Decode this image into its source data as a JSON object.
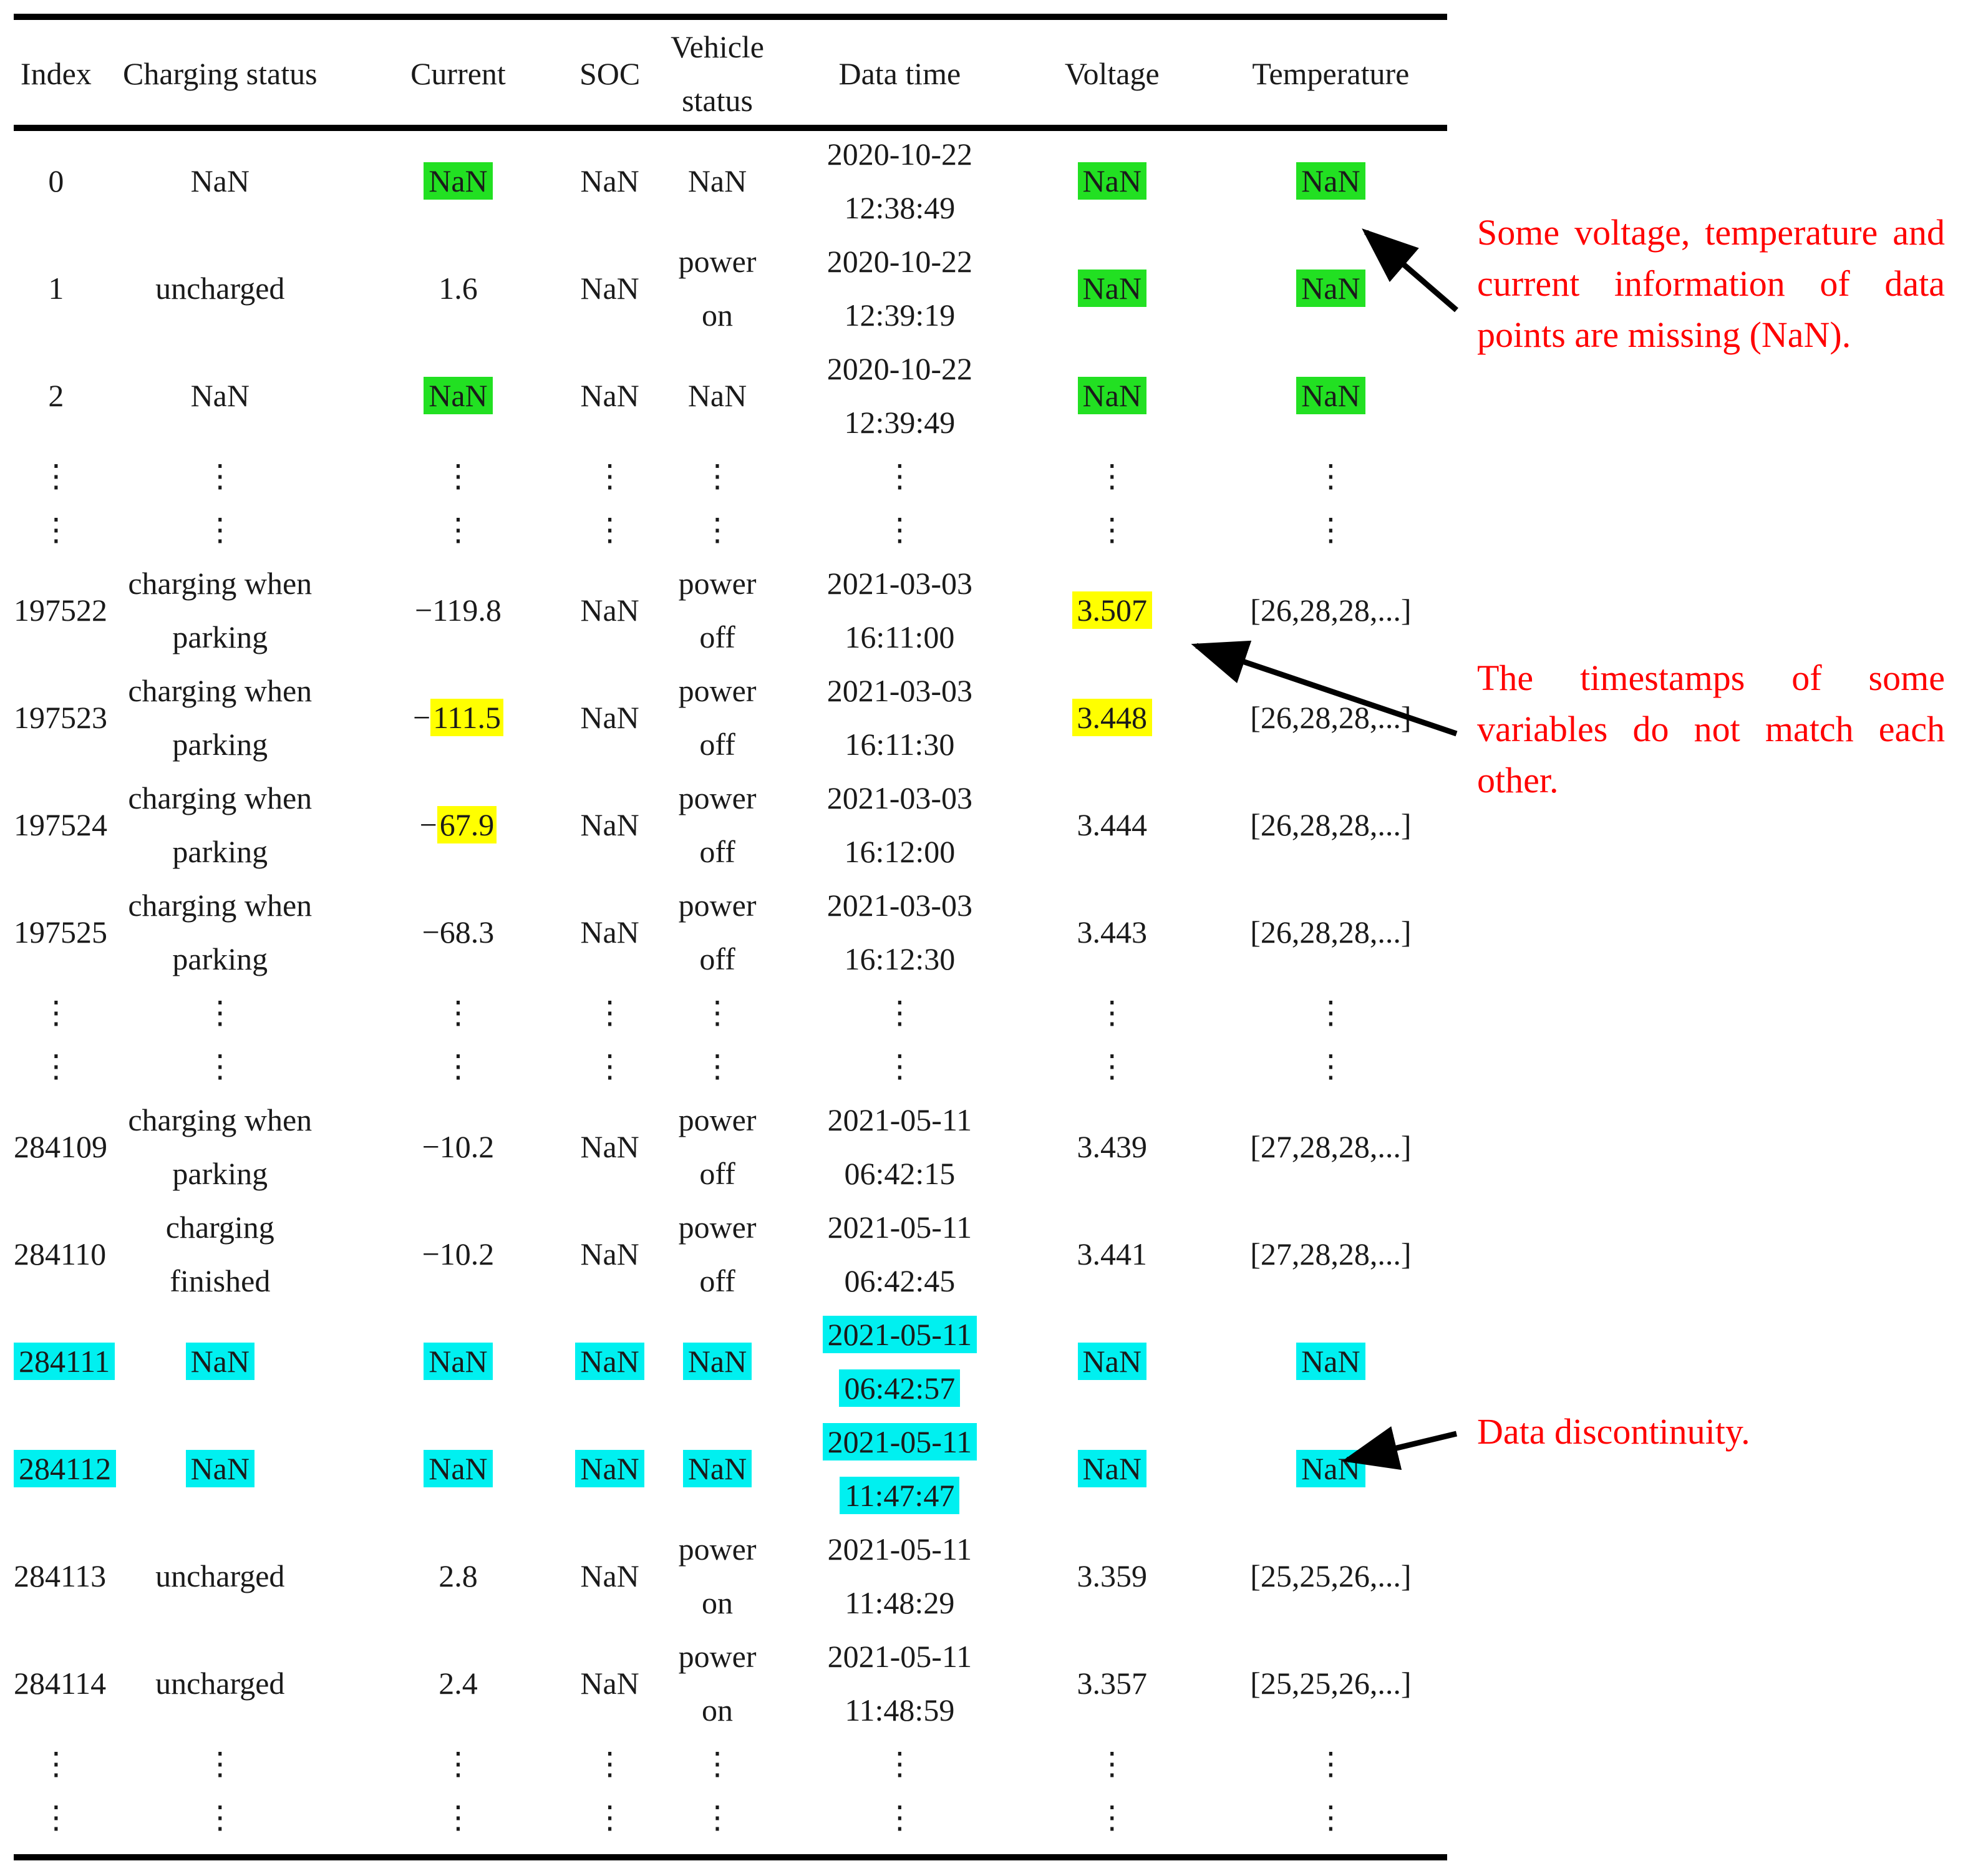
{
  "table": {
    "headers": [
      "Index",
      "Charging status",
      "Current",
      "SOC",
      "Vehicle status",
      "Data time",
      "Voltage",
      "Temperature"
    ],
    "header_lines": {
      "vehicle": [
        "Vehicle",
        "status"
      ]
    },
    "dots": "⋮",
    "colors": {
      "missing": "#22e022",
      "mismatch": "#ffff00",
      "discontinuity": "#00f0f0"
    },
    "rows": [
      {
        "kind": "data",
        "index": "0",
        "charging": [
          "NaN"
        ],
        "current": "NaN",
        "soc": "NaN",
        "vehicle": [
          "NaN"
        ],
        "time": [
          "2020-10-22",
          "12:38:49"
        ],
        "voltage": "NaN",
        "temp": "NaN",
        "hl": {
          "current": "green",
          "voltage": "green",
          "temp": "green"
        }
      },
      {
        "kind": "data",
        "index": "1",
        "charging": [
          "uncharged"
        ],
        "current": "1.6",
        "soc": "NaN",
        "vehicle": [
          "power",
          "on"
        ],
        "time": [
          "2020-10-22",
          "12:39:19"
        ],
        "voltage": "NaN",
        "temp": "NaN",
        "hl": {
          "voltage": "green",
          "temp": "green"
        }
      },
      {
        "kind": "data",
        "index": "2",
        "charging": [
          "NaN"
        ],
        "current": "NaN",
        "soc": "NaN",
        "vehicle": [
          "NaN"
        ],
        "time": [
          "2020-10-22",
          "12:39:49"
        ],
        "voltage": "NaN",
        "temp": "NaN",
        "hl": {
          "current": "green",
          "voltage": "green",
          "temp": "green"
        }
      },
      {
        "kind": "dots"
      },
      {
        "kind": "dots"
      },
      {
        "kind": "data",
        "index": "197522",
        "charging": [
          "charging when",
          "parking"
        ],
        "current": "−119.8",
        "soc": "NaN",
        "vehicle": [
          "power",
          "off"
        ],
        "time": [
          "2021-03-03",
          "16:11:00"
        ],
        "voltage": "3.507",
        "temp": "[26,28,28,...]",
        "hl": {
          "voltage": "yellow"
        }
      },
      {
        "kind": "data",
        "index": "197523",
        "charging": [
          "charging when",
          "parking"
        ],
        "current": "−111.5",
        "soc": "NaN",
        "vehicle": [
          "power",
          "off"
        ],
        "time": [
          "2021-03-03",
          "16:11:30"
        ],
        "voltage": "3.448",
        "temp": "[26,28,28,...]",
        "hl": {
          "current": "yellow-num",
          "voltage": "yellow"
        }
      },
      {
        "kind": "data",
        "index": "197524",
        "charging": [
          "charging when",
          "parking"
        ],
        "current": "−67.9",
        "soc": "NaN",
        "vehicle": [
          "power",
          "off"
        ],
        "time": [
          "2021-03-03",
          "16:12:00"
        ],
        "voltage": "3.444",
        "temp": "[26,28,28,...]",
        "hl": {
          "current": "yellow-num"
        }
      },
      {
        "kind": "data",
        "index": "197525",
        "charging": [
          "charging when",
          "parking"
        ],
        "current": "−68.3",
        "soc": "NaN",
        "vehicle": [
          "power",
          "off"
        ],
        "time": [
          "2021-03-03",
          "16:12:30"
        ],
        "voltage": "3.443",
        "temp": "[26,28,28,...]",
        "hl": {}
      },
      {
        "kind": "dots"
      },
      {
        "kind": "dots"
      },
      {
        "kind": "data",
        "index": "284109",
        "charging": [
          "charging when",
          "parking"
        ],
        "current": "−10.2",
        "soc": "NaN",
        "vehicle": [
          "power",
          "off"
        ],
        "time": [
          "2021-05-11",
          "06:42:15"
        ],
        "voltage": "3.439",
        "temp": "[27,28,28,...]",
        "hl": {}
      },
      {
        "kind": "data",
        "index": "284110",
        "charging": [
          "charging",
          "finished"
        ],
        "current": "−10.2",
        "soc": "NaN",
        "vehicle": [
          "power",
          "off"
        ],
        "time": [
          "2021-05-11",
          "06:42:45"
        ],
        "voltage": "3.441",
        "temp": "[27,28,28,...]",
        "hl": {}
      },
      {
        "kind": "data",
        "index": "284111",
        "charging": [
          "NaN"
        ],
        "current": "NaN",
        "soc": "NaN",
        "vehicle": [
          "NaN"
        ],
        "time": [
          "2021-05-11",
          "06:42:57"
        ],
        "voltage": "NaN",
        "temp": "NaN",
        "hl": {
          "all": "cyan"
        }
      },
      {
        "kind": "data",
        "index": "284112",
        "charging": [
          "NaN"
        ],
        "current": "NaN",
        "soc": "NaN",
        "vehicle": [
          "NaN"
        ],
        "time": [
          "2021-05-11",
          "11:47:47"
        ],
        "voltage": "NaN",
        "temp": "NaN",
        "hl": {
          "all": "cyan"
        }
      },
      {
        "kind": "data",
        "index": "284113",
        "charging": [
          "uncharged"
        ],
        "current": "2.8",
        "soc": "NaN",
        "vehicle": [
          "power",
          "on"
        ],
        "time": [
          "2021-05-11",
          "11:48:29"
        ],
        "voltage": "3.359",
        "temp": "[25,25,26,...]",
        "hl": {}
      },
      {
        "kind": "data",
        "index": "284114",
        "charging": [
          "uncharged"
        ],
        "current": "2.4",
        "soc": "NaN",
        "vehicle": [
          "power",
          "on"
        ],
        "time": [
          "2021-05-11",
          "11:48:59"
        ],
        "voltage": "3.357",
        "temp": "[25,25,26,...]",
        "hl": {}
      },
      {
        "kind": "dots"
      },
      {
        "kind": "dots"
      }
    ]
  },
  "annotations": {
    "missing": "Some voltage, temperature and current information of data points are missing (NaN).",
    "mismatch": "The timestamps of some variables do not match each other.",
    "discontinuity": "Data discontinuity."
  }
}
